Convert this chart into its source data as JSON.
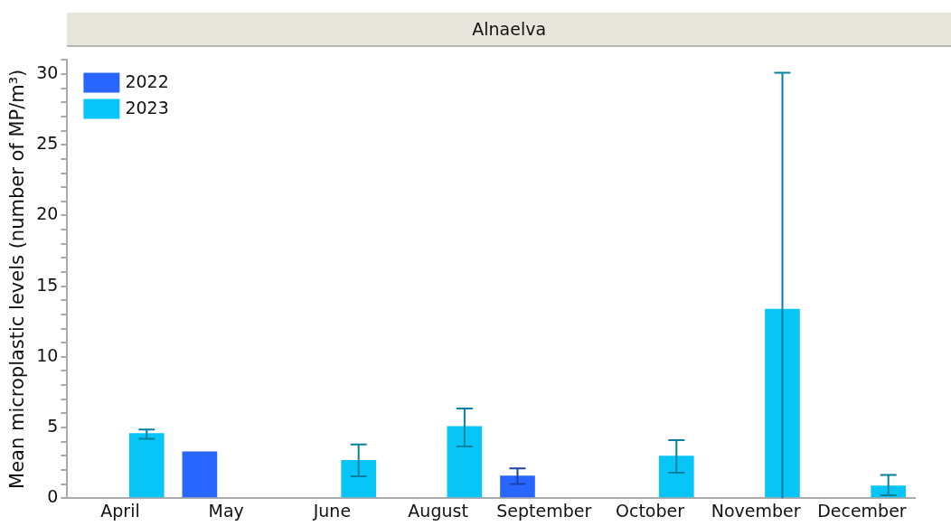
{
  "chart_data": {
    "type": "bar",
    "title": "Alnaelva",
    "ylabel": "Mean microplastic levels (number of MP/m³)",
    "categories": [
      "April",
      "May",
      "June",
      "August",
      "September",
      "October",
      "November",
      "December"
    ],
    "series": [
      {
        "name": "2022",
        "color": "#2966ff",
        "values": [
          null,
          3.3,
          null,
          null,
          1.6,
          null,
          null,
          null
        ],
        "errors": [
          null,
          null,
          null,
          null,
          [
            1.0,
            2.1
          ],
          null,
          null,
          null
        ]
      },
      {
        "name": "2023",
        "color": "#08c5f7",
        "values": [
          4.6,
          null,
          2.7,
          5.1,
          null,
          3.0,
          13.4,
          0.9
        ],
        "errors": [
          [
            4.2,
            4.85
          ],
          null,
          [
            1.55,
            3.8
          ],
          [
            3.65,
            6.35
          ],
          null,
          [
            1.8,
            4.1
          ],
          [
            0,
            30.1
          ],
          [
            0.2,
            1.65
          ]
        ]
      }
    ],
    "ylim": [
      0,
      31
    ],
    "yticks": [
      0,
      {
        "value": 1,
        "label": null
      },
      {
        "value": 2,
        "label": null
      },
      {
        "value": 3,
        "label": null
      },
      {
        "value": 4,
        "label": null
      },
      5,
      {
        "value": 6,
        "label": null
      },
      {
        "value": 7,
        "label": null
      },
      {
        "value": 8,
        "label": null
      },
      {
        "value": 9,
        "label": null
      },
      10,
      {
        "value": 11,
        "label": null
      },
      {
        "value": 12,
        "label": null
      },
      {
        "value": 13,
        "label": null
      },
      {
        "value": 14,
        "label": null
      },
      15,
      {
        "value": 16,
        "label": null
      },
      {
        "value": 17,
        "label": null
      },
      {
        "value": 18,
        "label": null
      },
      {
        "value": 19,
        "label": null
      },
      20,
      {
        "value": 21,
        "label": null
      },
      {
        "value": 22,
        "label": null
      },
      {
        "value": 23,
        "label": null
      },
      {
        "value": 24,
        "label": null
      },
      25,
      {
        "value": 26,
        "label": null
      },
      {
        "value": 27,
        "label": null
      },
      {
        "value": 28,
        "label": null
      },
      {
        "value": 29,
        "label": null
      },
      30,
      {
        "value": 31,
        "label": null
      }
    ],
    "grid": false,
    "legend": "top left"
  }
}
